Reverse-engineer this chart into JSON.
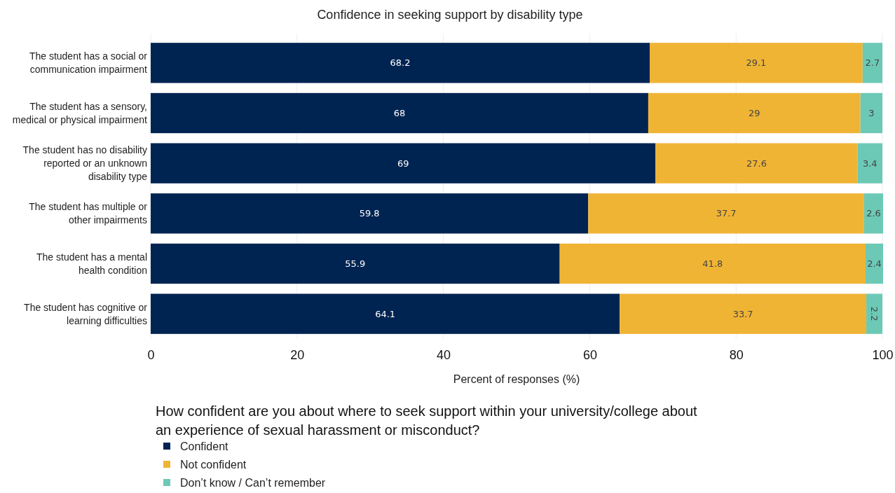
{
  "chart_data": {
    "type": "bar",
    "orientation": "horizontal",
    "stacked": true,
    "title": "Confidence in seeking support by disability type",
    "xlabel": "Percent of responses (%)",
    "legend_title": "How confident are you about where to seek support within your university/college about an experience of sexual harassment or misconduct?",
    "categories": [
      "The student has a social or communication impairment",
      "The student has a sensory, medical or physical impairment",
      "The student has no disability reported or an unknown disability type",
      "The student has multiple or other impairments",
      "The student has a mental health condition",
      "The student has cognitive or learning difficulties"
    ],
    "series": [
      {
        "name": "Confident",
        "color": "#002452",
        "values": [
          68.2,
          68,
          69,
          59.8,
          55.9,
          64.1
        ]
      },
      {
        "name": "Not confident",
        "color": "#f0b435",
        "values": [
          29.1,
          29,
          27.6,
          37.7,
          41.8,
          33.7
        ]
      },
      {
        "name": "Don’t know / Can’t remember",
        "color": "#6cc9b6",
        "values": [
          2.7,
          3,
          3.4,
          2.6,
          2.4,
          2.2
        ]
      }
    ],
    "xlim": [
      0,
      100
    ],
    "xticks": [
      0,
      20,
      40,
      60,
      80,
      100
    ],
    "grid": "x",
    "data_labels": true,
    "legend": "bottom left"
  }
}
